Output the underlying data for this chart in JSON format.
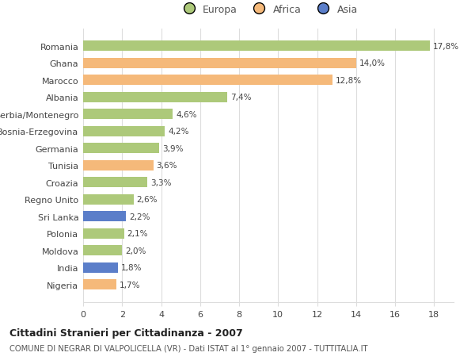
{
  "countries": [
    "Nigeria",
    "India",
    "Moldova",
    "Polonia",
    "Sri Lanka",
    "Regno Unito",
    "Croazia",
    "Tunisia",
    "Germania",
    "Bosnia-Erzegovina",
    "Serbia/Montenegro",
    "Albania",
    "Marocco",
    "Ghana",
    "Romania"
  ],
  "values": [
    1.7,
    1.8,
    2.0,
    2.1,
    2.2,
    2.6,
    3.3,
    3.6,
    3.9,
    4.2,
    4.6,
    7.4,
    12.8,
    14.0,
    17.8
  ],
  "continents": [
    "Africa",
    "Asia",
    "Europa",
    "Europa",
    "Asia",
    "Europa",
    "Europa",
    "Africa",
    "Europa",
    "Europa",
    "Europa",
    "Europa",
    "Africa",
    "Africa",
    "Europa"
  ],
  "labels": [
    "1,7%",
    "1,8%",
    "2,0%",
    "2,1%",
    "2,2%",
    "2,6%",
    "3,3%",
    "3,6%",
    "3,9%",
    "4,2%",
    "4,6%",
    "7,4%",
    "12,8%",
    "14,0%",
    "17,8%"
  ],
  "color_map": {
    "Europa": "#adc97a",
    "Africa": "#f5b97a",
    "Asia": "#5b7ec9"
  },
  "title": "Cittadini Stranieri per Cittadinanza - 2007",
  "subtitle": "COMUNE DI NEGRAR DI VALPOLICELLA (VR) - Dati ISTAT al 1° gennaio 2007 - TUTTITALIA.IT",
  "xlim": [
    0,
    19
  ],
  "xticks": [
    0,
    2,
    4,
    6,
    8,
    10,
    12,
    14,
    16,
    18
  ],
  "background_color": "#ffffff",
  "grid_color": "#dddddd",
  "bar_height": 0.6
}
